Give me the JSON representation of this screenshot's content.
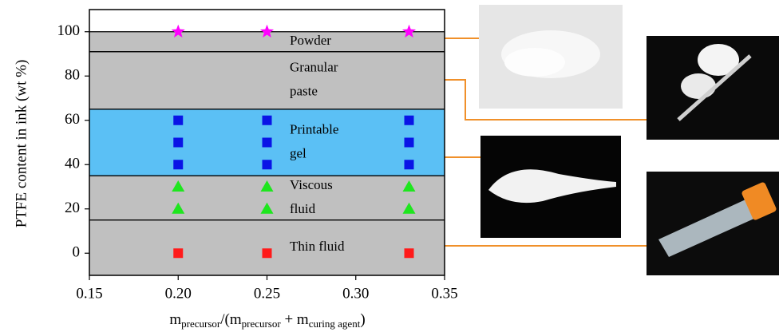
{
  "chart_data": {
    "type": "scatter",
    "xlabel": [
      {
        "text": "m",
        "sub": false
      },
      {
        "text": "precursor",
        "sub": true
      },
      {
        "text": "/(m",
        "sub": false
      },
      {
        "text": "precursor",
        "sub": true
      },
      {
        "text": " + m",
        "sub": false
      },
      {
        "text": "curing agent",
        "sub": true
      },
      {
        "text": ")",
        "sub": false
      }
    ],
    "ylabel": "PTFE content in ink (wt %)",
    "xlim": [
      0.15,
      0.35
    ],
    "ylim": [
      -10,
      110
    ],
    "xticks": [
      0.15,
      {
        "value": 0.2,
        "label": "0.20"
      },
      0.25,
      {
        "value": 0.3,
        "label": "0.30"
      },
      0.35
    ],
    "yticks": [
      0,
      20,
      40,
      60,
      80,
      100
    ],
    "regions": [
      {
        "label": [
          "Powder"
        ],
        "from": 91,
        "to": 100,
        "color": "#c0c0c0"
      },
      {
        "label": [
          "Granular",
          "paste"
        ],
        "from": 65,
        "to": 91,
        "color": "#c0c0c0"
      },
      {
        "label": [
          "Printable",
          "gel"
        ],
        "from": 35,
        "to": 65,
        "color": "#5bc0f5"
      },
      {
        "label": [
          "Viscous",
          "fluid"
        ],
        "from": 15,
        "to": 35,
        "color": "#c0c0c0"
      },
      {
        "label": [
          "Thin fluid"
        ],
        "from": -10,
        "to": 15,
        "color": "#c0c0c0"
      }
    ],
    "series": [
      {
        "marker": "star",
        "color": "#ff00ff",
        "x": [
          0.2,
          0.25,
          0.33
        ],
        "values": [
          100,
          100,
          100
        ]
      },
      {
        "marker": "square",
        "color": "#0a14e6",
        "x": [
          0.2,
          0.2,
          0.2,
          0.25,
          0.25,
          0.25,
          0.33,
          0.33,
          0.33
        ],
        "values": [
          40,
          50,
          60,
          40,
          50,
          60,
          40,
          50,
          60
        ]
      },
      {
        "marker": "triangle",
        "color": "#1ee61e",
        "x": [
          0.2,
          0.2,
          0.25,
          0.25,
          0.33,
          0.33
        ],
        "values": [
          20,
          30,
          20,
          30,
          20,
          30
        ]
      },
      {
        "marker": "square",
        "color": "#ff1a1a",
        "x": [
          0.2,
          0.25,
          0.33
        ],
        "values": [
          0,
          0,
          0
        ]
      }
    ]
  }
}
